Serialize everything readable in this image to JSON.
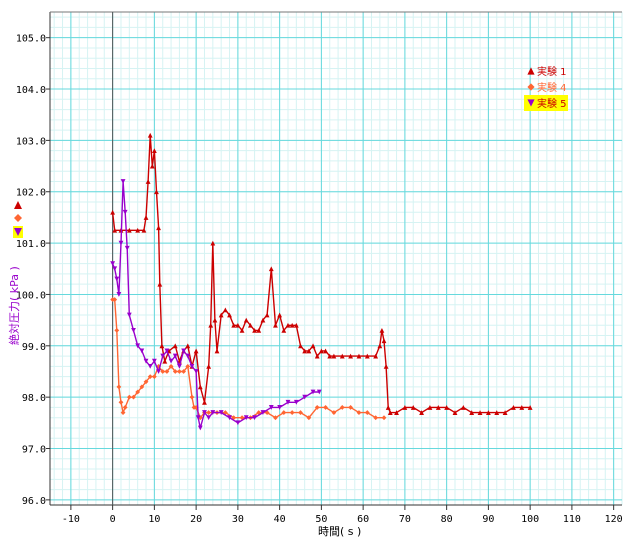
{
  "chart_data": {
    "type": "scatter",
    "xlabel": "時間( s )",
    "ylabel": "絶対圧力( kPa )",
    "xlim": [
      -15,
      122
    ],
    "ylim": [
      95.9,
      105.5
    ],
    "x_ticks": [
      -10,
      0,
      10,
      20,
      30,
      40,
      50,
      60,
      70,
      80,
      90,
      100,
      110,
      120
    ],
    "y_ticks": [
      96.0,
      97.0,
      98.0,
      99.0,
      100.0,
      101.0,
      102.0,
      103.0,
      104.0,
      105.0
    ],
    "grid": true,
    "legend_position": "top-right",
    "series": [
      {
        "name": "実験 1",
        "color": "#cc0000",
        "marker": "triangle-up",
        "points": [
          [
            0,
            101.6
          ],
          [
            0.5,
            101.25
          ],
          [
            2,
            101.25
          ],
          [
            4,
            101.25
          ],
          [
            6,
            101.25
          ],
          [
            7.5,
            101.25
          ],
          [
            8,
            101.5
          ],
          [
            8.5,
            102.2
          ],
          [
            9,
            103.1
          ],
          [
            9.5,
            102.5
          ],
          [
            10,
            102.8
          ],
          [
            10.5,
            102.0
          ],
          [
            11,
            101.3
          ],
          [
            11.3,
            100.2
          ],
          [
            11.8,
            99.0
          ],
          [
            12.5,
            98.7
          ],
          [
            13.5,
            98.9
          ],
          [
            15,
            99.0
          ],
          [
            16,
            98.7
          ],
          [
            17,
            98.9
          ],
          [
            18,
            99.0
          ],
          [
            19,
            98.6
          ],
          [
            20,
            98.9
          ],
          [
            21,
            98.2
          ],
          [
            22,
            97.9
          ],
          [
            23,
            98.6
          ],
          [
            23.5,
            99.4
          ],
          [
            24,
            101.0
          ],
          [
            24.5,
            99.5
          ],
          [
            25,
            98.9
          ],
          [
            26,
            99.6
          ],
          [
            27,
            99.7
          ],
          [
            28,
            99.6
          ],
          [
            29,
            99.4
          ],
          [
            30,
            99.4
          ],
          [
            31,
            99.3
          ],
          [
            32,
            99.5
          ],
          [
            33,
            99.4
          ],
          [
            34,
            99.3
          ],
          [
            35,
            99.3
          ],
          [
            36,
            99.5
          ],
          [
            37,
            99.6
          ],
          [
            38,
            100.5
          ],
          [
            39,
            99.4
          ],
          [
            40,
            99.6
          ],
          [
            41,
            99.3
          ],
          [
            42,
            99.4
          ],
          [
            43,
            99.4
          ],
          [
            44,
            99.4
          ],
          [
            45,
            99.0
          ],
          [
            46,
            98.9
          ],
          [
            47,
            98.9
          ],
          [
            48,
            99.0
          ],
          [
            49,
            98.8
          ],
          [
            50,
            98.9
          ],
          [
            51,
            98.9
          ],
          [
            52,
            98.8
          ],
          [
            53,
            98.8
          ],
          [
            55,
            98.8
          ],
          [
            57,
            98.8
          ],
          [
            59,
            98.8
          ],
          [
            61,
            98.8
          ],
          [
            63,
            98.8
          ],
          [
            64,
            99.0
          ],
          [
            64.5,
            99.3
          ],
          [
            65,
            99.1
          ],
          [
            65.5,
            98.6
          ],
          [
            66,
            97.8
          ],
          [
            66.5,
            97.7
          ],
          [
            68,
            97.7
          ],
          [
            70,
            97.8
          ],
          [
            72,
            97.8
          ],
          [
            74,
            97.7
          ],
          [
            76,
            97.8
          ],
          [
            78,
            97.8
          ],
          [
            80,
            97.8
          ],
          [
            82,
            97.7
          ],
          [
            84,
            97.8
          ],
          [
            86,
            97.7
          ],
          [
            88,
            97.7
          ],
          [
            90,
            97.7
          ],
          [
            92,
            97.7
          ],
          [
            94,
            97.7
          ],
          [
            96,
            97.8
          ],
          [
            98,
            97.8
          ],
          [
            100,
            97.8
          ]
        ]
      },
      {
        "name": "実験 4",
        "color": "#ff6633",
        "marker": "diamond",
        "points": [
          [
            0,
            99.9
          ],
          [
            0.5,
            99.9
          ],
          [
            1,
            99.3
          ],
          [
            1.5,
            98.2
          ],
          [
            2,
            97.9
          ],
          [
            2.5,
            97.7
          ],
          [
            3,
            97.8
          ],
          [
            4,
            98.0
          ],
          [
            5,
            98.0
          ],
          [
            6,
            98.1
          ],
          [
            7,
            98.2
          ],
          [
            8,
            98.3
          ],
          [
            9,
            98.4
          ],
          [
            10,
            98.4
          ],
          [
            11,
            98.6
          ],
          [
            12,
            98.5
          ],
          [
            13,
            98.5
          ],
          [
            14,
            98.6
          ],
          [
            15,
            98.5
          ],
          [
            16,
            98.5
          ],
          [
            17,
            98.5
          ],
          [
            18,
            98.6
          ],
          [
            19,
            98.0
          ],
          [
            19.5,
            97.8
          ],
          [
            20,
            97.8
          ],
          [
            21,
            97.6
          ],
          [
            22,
            97.7
          ],
          [
            23,
            97.7
          ],
          [
            25,
            97.7
          ],
          [
            27,
            97.7
          ],
          [
            29,
            97.6
          ],
          [
            31,
            97.6
          ],
          [
            33,
            97.6
          ],
          [
            35,
            97.7
          ],
          [
            37,
            97.7
          ],
          [
            39,
            97.6
          ],
          [
            41,
            97.7
          ],
          [
            43,
            97.7
          ],
          [
            45,
            97.7
          ],
          [
            47,
            97.6
          ],
          [
            49,
            97.8
          ],
          [
            51,
            97.8
          ],
          [
            53,
            97.7
          ],
          [
            55,
            97.8
          ],
          [
            57,
            97.8
          ],
          [
            59,
            97.7
          ],
          [
            61,
            97.7
          ],
          [
            63,
            97.6
          ],
          [
            65,
            97.6
          ]
        ]
      },
      {
        "name": "実験 5",
        "color": "#9900cc",
        "marker": "triangle-down",
        "points": [
          [
            0,
            100.6
          ],
          [
            0.5,
            100.5
          ],
          [
            1,
            100.3
          ],
          [
            1.5,
            100.0
          ],
          [
            2,
            101.0
          ],
          [
            2.5,
            102.2
          ],
          [
            3,
            101.6
          ],
          [
            3.5,
            100.9
          ],
          [
            4,
            99.6
          ],
          [
            5,
            99.3
          ],
          [
            6,
            99.0
          ],
          [
            7,
            98.9
          ],
          [
            8,
            98.7
          ],
          [
            9,
            98.6
          ],
          [
            10,
            98.7
          ],
          [
            11,
            98.5
          ],
          [
            12,
            98.8
          ],
          [
            13,
            98.9
          ],
          [
            14,
            98.7
          ],
          [
            15,
            98.8
          ],
          [
            16,
            98.6
          ],
          [
            17,
            98.9
          ],
          [
            18,
            98.8
          ],
          [
            19,
            98.6
          ],
          [
            20,
            98.5
          ],
          [
            20.5,
            97.6
          ],
          [
            21,
            97.4
          ],
          [
            22,
            97.7
          ],
          [
            23,
            97.6
          ],
          [
            24,
            97.7
          ],
          [
            26,
            97.7
          ],
          [
            28,
            97.6
          ],
          [
            30,
            97.5
          ],
          [
            32,
            97.6
          ],
          [
            34,
            97.6
          ],
          [
            36,
            97.7
          ],
          [
            38,
            97.8
          ],
          [
            40,
            97.8
          ],
          [
            42,
            97.9
          ],
          [
            44,
            97.9
          ],
          [
            46,
            98.0
          ],
          [
            48,
            98.1
          ],
          [
            49.5,
            98.1
          ]
        ]
      }
    ]
  }
}
